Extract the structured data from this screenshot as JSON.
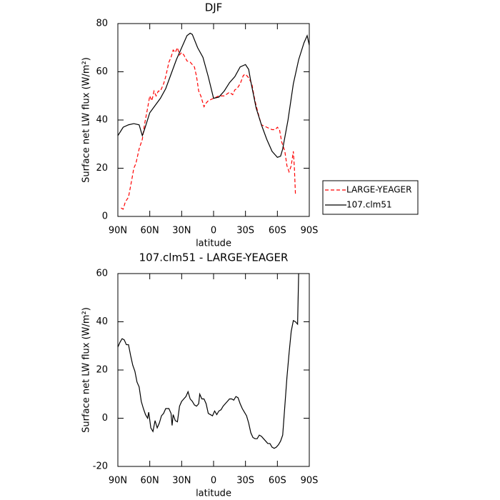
{
  "chart_data": [
    {
      "type": "line",
      "title": "DJF",
      "xlabel": "latitude",
      "ylabel": "Surface net LW flux (W/m²)",
      "xlim": [
        90,
        -90
      ],
      "ylim": [
        0,
        80
      ],
      "xticks": [
        {
          "value": 90,
          "label": "90N"
        },
        {
          "value": 60,
          "label": "60N"
        },
        {
          "value": 30,
          "label": "30N"
        },
        0,
        {
          "value": -30,
          "label": "30S"
        },
        {
          "value": -60,
          "label": "60S"
        },
        {
          "value": -90,
          "label": "90S"
        }
      ],
      "yticks": [
        0,
        20,
        40,
        60,
        80
      ],
      "legend": "right",
      "series": [
        {
          "name": "LARGE-YEAGER",
          "color": "#ff0000",
          "dash": true,
          "x": [
            87,
            85,
            83,
            80,
            77,
            75,
            73,
            70,
            67,
            65,
            62,
            60,
            58,
            56,
            54,
            52,
            50,
            47,
            45,
            42,
            40,
            38,
            36,
            34,
            32,
            30,
            28,
            25,
            22,
            20,
            18,
            16,
            14,
            12,
            10,
            9,
            7,
            5,
            0,
            -5,
            -10,
            -15,
            -18,
            -20,
            -22,
            -25,
            -28,
            -30,
            -33,
            -36,
            -38,
            -40,
            -43,
            -45,
            -50,
            -55,
            -58,
            -60,
            -62,
            -64,
            -67,
            -69,
            -71,
            -73,
            -75,
            -76,
            -77
          ],
          "values": [
            3.5,
            3,
            6,
            8,
            15,
            20,
            22,
            28,
            32,
            38,
            45,
            50,
            48,
            52,
            50,
            52,
            52,
            55,
            58,
            64,
            66,
            69,
            68,
            70,
            67,
            68,
            67,
            64.5,
            64,
            63,
            62,
            58,
            52,
            50,
            47,
            45.5,
            47,
            48,
            49,
            50,
            50,
            51.5,
            50.5,
            52.5,
            53,
            55,
            58.5,
            59,
            57.5,
            55,
            50,
            46,
            41,
            38,
            37,
            36,
            36,
            37,
            36,
            31,
            27,
            21,
            18.5,
            21,
            27,
            20,
            9
          ]
        },
        {
          "name": "107.clm51",
          "color": "#000000",
          "dash": false,
          "x": [
            90,
            85,
            80,
            75,
            70,
            67,
            65,
            60,
            55,
            50,
            45,
            40,
            35,
            30,
            25,
            22,
            20,
            15,
            10,
            5,
            0,
            -5,
            -10,
            -15,
            -20,
            -25,
            -30,
            -33,
            -35,
            -40,
            -45,
            -50,
            -55,
            -60,
            -63,
            -65,
            -70,
            -75,
            -80,
            -85,
            -88,
            -90
          ],
          "values": [
            33.5,
            37,
            38,
            38.5,
            38,
            33.5,
            36,
            43,
            46,
            49,
            53,
            59,
            65,
            70,
            75,
            76,
            75.5,
            70,
            66,
            58,
            49,
            49.5,
            52,
            55.5,
            58,
            62,
            63,
            61,
            56,
            45,
            38,
            32,
            27,
            24.5,
            25,
            28,
            40,
            55,
            65,
            72,
            75,
            71
          ]
        }
      ]
    },
    {
      "type": "line",
      "title": "107.clm51 - LARGE-YEAGER",
      "xlabel": "latitude",
      "ylabel": "Surface net LW flux (W/m²)",
      "xlim": [
        90,
        -90
      ],
      "ylim": [
        -20,
        60
      ],
      "xticks": [
        {
          "value": 90,
          "label": "90N"
        },
        {
          "value": 60,
          "label": "60N"
        },
        {
          "value": 30,
          "label": "30N"
        },
        0,
        {
          "value": -30,
          "label": "30S"
        },
        {
          "value": -60,
          "label": "60S"
        },
        {
          "value": -90,
          "label": "90S"
        }
      ],
      "yticks": [
        -20,
        0,
        20,
        40,
        60
      ],
      "series": [
        {
          "color": "#000000",
          "dash": false,
          "x": [
            90,
            88,
            86,
            84,
            82,
            80,
            78,
            76,
            74,
            72,
            70,
            68,
            66,
            64,
            62,
            61,
            59,
            57,
            55,
            53,
            51,
            49,
            47,
            45,
            42,
            40,
            39,
            38,
            36,
            34,
            32,
            30,
            28,
            26,
            24,
            22,
            20,
            18,
            16,
            14,
            13,
            11,
            9,
            7,
            5,
            3,
            1,
            -1,
            -3,
            -5,
            -7,
            -9,
            -11,
            -13,
            -15,
            -17,
            -19,
            -21,
            -23,
            -25,
            -27,
            -29,
            -31,
            -33,
            -35,
            -37,
            -39,
            -41,
            -43,
            -45,
            -47,
            -49,
            -51,
            -53,
            -55,
            -57,
            -59,
            -61,
            -63,
            -65,
            -67,
            -69,
            -71,
            -73,
            -75,
            -77,
            -79,
            -80
          ],
          "values": [
            29.5,
            31.5,
            33,
            32.5,
            30.5,
            30.5,
            26,
            22,
            19.5,
            15,
            13,
            7,
            4,
            1.5,
            0,
            2.5,
            -4,
            -5.5,
            -1,
            -4,
            -2,
            1,
            2,
            4,
            4,
            2,
            -3,
            1.5,
            -1,
            -1.5,
            5,
            7,
            8,
            9,
            11,
            8,
            7,
            5.5,
            5,
            6,
            10,
            8,
            8,
            6,
            2,
            1.5,
            1,
            3,
            1.5,
            3,
            3.5,
            5,
            6,
            7,
            8,
            8,
            7.5,
            9,
            8.5,
            6,
            4,
            2.5,
            1,
            -2,
            -6,
            -8,
            -8.5,
            -8.5,
            -7,
            -7.5,
            -8.5,
            -9.5,
            -10.5,
            -10.5,
            -12,
            -12.5,
            -12,
            -11,
            -9.5,
            -7,
            5,
            17,
            27,
            36,
            40.5,
            40,
            39,
            60
          ]
        }
      ]
    }
  ]
}
